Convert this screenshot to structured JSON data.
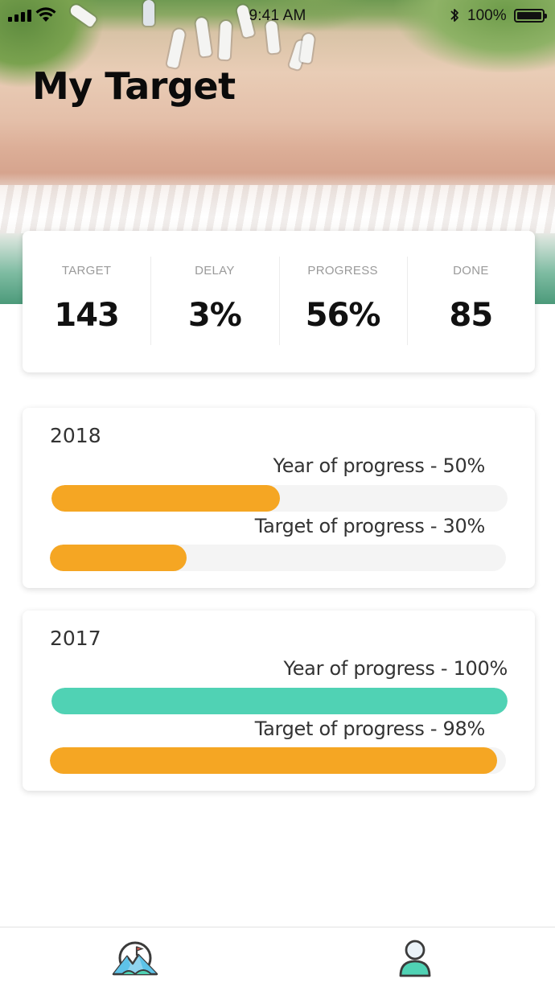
{
  "status_bar": {
    "time": "9:41 AM",
    "battery": "100%"
  },
  "header": {
    "title": "My Target"
  },
  "stats": [
    {
      "label": "TARGET",
      "value": "143"
    },
    {
      "label": "DELAY",
      "value": "3%"
    },
    {
      "label": "PROGRESS",
      "value": "56%"
    },
    {
      "label": "DONE",
      "value": "85"
    }
  ],
  "years": [
    {
      "year": "2018",
      "year_progress_label": "Year of progress - 50%",
      "year_progress": 0.5,
      "year_progress_color": "#F5A623",
      "target_progress_label": "Target of progress - 30%",
      "target_progress": 0.3,
      "target_progress_color": "#F5A623"
    },
    {
      "year": "2017",
      "year_progress_label": "Year of progress - 100%",
      "year_progress": 1.0,
      "year_progress_color": "#50D2B4",
      "target_progress_label": "Target of progress - 98%",
      "target_progress": 0.98,
      "target_progress_color": "#F5A623"
    }
  ],
  "tab_bar": {
    "items": [
      {
        "icon": "mountain-flag-icon",
        "active": true
      },
      {
        "icon": "person-icon",
        "active": false
      }
    ]
  },
  "colors": {
    "accent_orange": "#F5A623",
    "accent_green": "#50D2B4",
    "track": "#F4F4F4"
  }
}
